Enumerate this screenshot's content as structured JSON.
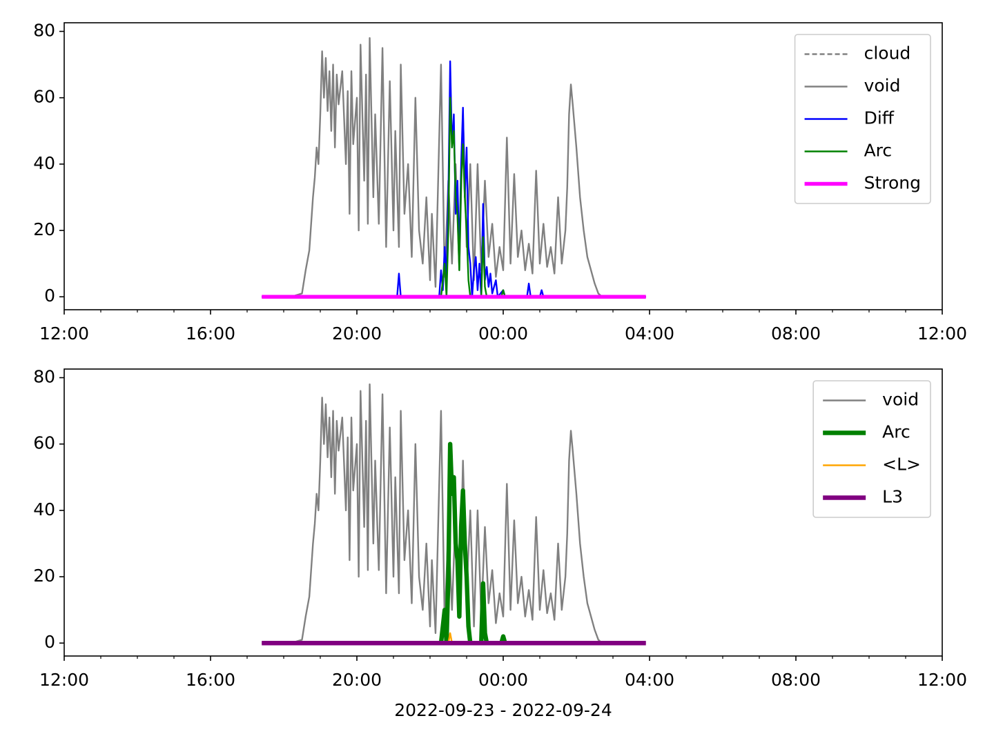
{
  "chart_data": [
    {
      "type": "line",
      "ylim": [
        -3.9,
        82.6
      ],
      "yticks": [
        0,
        20,
        40,
        60,
        80
      ],
      "xlim": [
        0,
        24
      ],
      "xticks": [
        {
          "value": 0,
          "label": "12:00"
        },
        {
          "value": 4,
          "label": "16:00"
        },
        {
          "value": 8,
          "label": "20:00"
        },
        {
          "value": 12,
          "label": "00:00"
        },
        {
          "value": 16,
          "label": "04:00"
        },
        {
          "value": 20,
          "label": "08:00"
        },
        {
          "value": 24,
          "label": "12:00"
        }
      ],
      "xminorticks": [
        1,
        2,
        3,
        5,
        6,
        7,
        9,
        10,
        11,
        13,
        14,
        15,
        17,
        18,
        19,
        21,
        22,
        23
      ],
      "legend": "upper right",
      "series": [
        {
          "name": "cloud",
          "color": "#808080",
          "linestyle": "dashed",
          "linewidth": 1.5,
          "x": [
            5.4,
            15.9
          ],
          "values": [
            0,
            0
          ]
        },
        {
          "name": "void",
          "color": "#808080",
          "linestyle": "solid",
          "linewidth": 1.5,
          "x": [
            5.4,
            6.2,
            6.5,
            6.6,
            6.7,
            6.8,
            6.85,
            6.9,
            6.95,
            7.0,
            7.05,
            7.1,
            7.15,
            7.2,
            7.25,
            7.3,
            7.35,
            7.4,
            7.45,
            7.5,
            7.6,
            7.7,
            7.75,
            7.8,
            7.85,
            7.9,
            8.0,
            8.05,
            8.1,
            8.2,
            8.25,
            8.3,
            8.35,
            8.45,
            8.5,
            8.6,
            8.7,
            8.8,
            8.9,
            9.0,
            9.05,
            9.15,
            9.2,
            9.3,
            9.4,
            9.5,
            9.6,
            9.7,
            9.8,
            9.9,
            10.0,
            10.05,
            10.15,
            10.3,
            10.4,
            10.5,
            10.6,
            10.7,
            10.8,
            10.9,
            11.0,
            11.1,
            11.2,
            11.3,
            11.4,
            11.5,
            11.6,
            11.7,
            11.8,
            11.9,
            12.0,
            12.1,
            12.2,
            12.3,
            12.4,
            12.5,
            12.6,
            12.7,
            12.8,
            12.9,
            13.0,
            13.1,
            13.2,
            13.3,
            13.4,
            13.5,
            13.6,
            13.7,
            13.75,
            13.8,
            13.85,
            13.9,
            14.0,
            14.1,
            14.2,
            14.3,
            14.4,
            14.5,
            14.6,
            14.7,
            15.9
          ],
          "values": [
            0,
            0,
            1,
            8,
            14,
            30,
            36,
            45,
            40,
            55,
            74,
            60,
            72,
            56,
            68,
            50,
            70,
            45,
            67,
            58,
            68,
            40,
            62,
            25,
            68,
            46,
            60,
            20,
            76,
            35,
            67,
            22,
            78,
            30,
            55,
            22,
            75,
            15,
            65,
            20,
            50,
            15,
            70,
            25,
            40,
            12,
            60,
            20,
            10,
            30,
            5,
            25,
            3,
            70,
            6,
            35,
            10,
            40,
            8,
            55,
            15,
            40,
            5,
            40,
            8,
            35,
            12,
            22,
            6,
            15,
            8,
            48,
            10,
            37,
            12,
            20,
            8,
            16,
            7,
            38,
            10,
            22,
            9,
            15,
            7,
            30,
            10,
            20,
            33,
            55,
            64,
            58,
            45,
            30,
            20,
            12,
            8,
            4,
            1,
            0,
            0
          ]
        },
        {
          "name": "Diff",
          "color": "#0000ff",
          "linestyle": "solid",
          "linewidth": 1.5,
          "x": [
            5.4,
            9.1,
            9.15,
            9.2,
            10.25,
            10.3,
            10.35,
            10.4,
            10.45,
            10.5,
            10.55,
            10.6,
            10.65,
            10.7,
            10.75,
            10.8,
            10.85,
            10.9,
            10.95,
            11.0,
            11.05,
            11.1,
            11.15,
            11.2,
            11.25,
            11.3,
            11.35,
            11.4,
            11.45,
            11.5,
            11.55,
            11.6,
            11.65,
            11.7,
            11.8,
            11.85,
            12.0,
            12.05,
            12.65,
            12.7,
            12.75,
            13.0,
            13.05,
            13.1,
            15.9
          ],
          "values": [
            0,
            0,
            7,
            0,
            0,
            8,
            2,
            15,
            5,
            30,
            71,
            45,
            55,
            25,
            35,
            12,
            40,
            57,
            30,
            45,
            15,
            10,
            0,
            8,
            12,
            2,
            10,
            0,
            28,
            5,
            9,
            3,
            7,
            1,
            5,
            0,
            2,
            0,
            0,
            4,
            0,
            0,
            2,
            0,
            0
          ]
        },
        {
          "name": "Arc",
          "color": "#008000",
          "linestyle": "solid",
          "linewidth": 1.5,
          "x": [
            10.3,
            10.35,
            10.4,
            10.45,
            10.5,
            10.55,
            10.6,
            10.65,
            10.7,
            10.75,
            10.8,
            10.85,
            10.9,
            10.95,
            11.0,
            11.05,
            11.1,
            11.4,
            11.45,
            11.5,
            11.55,
            11.95,
            12.0,
            12.05
          ],
          "values": [
            0,
            5,
            10,
            0,
            20,
            60,
            45,
            50,
            30,
            25,
            8,
            35,
            46,
            30,
            20,
            5,
            0,
            0,
            18,
            3,
            0,
            0,
            2,
            0
          ]
        },
        {
          "name": "Strong",
          "color": "#ff00ff",
          "linestyle": "solid",
          "linewidth": 3.5,
          "x": [
            5.4,
            15.9
          ],
          "values": [
            0,
            0
          ]
        }
      ]
    },
    {
      "type": "line",
      "ylim": [
        -3.9,
        82.6
      ],
      "yticks": [
        0,
        20,
        40,
        60,
        80
      ],
      "xlim": [
        0,
        24
      ],
      "xticks": [
        {
          "value": 0,
          "label": "12:00"
        },
        {
          "value": 4,
          "label": "16:00"
        },
        {
          "value": 8,
          "label": "20:00"
        },
        {
          "value": 12,
          "label": "00:00"
        },
        {
          "value": 16,
          "label": "04:00"
        },
        {
          "value": 20,
          "label": "08:00"
        },
        {
          "value": 24,
          "label": "12:00"
        }
      ],
      "xminorticks": [
        1,
        2,
        3,
        5,
        6,
        7,
        9,
        10,
        11,
        13,
        14,
        15,
        17,
        18,
        19,
        21,
        22,
        23
      ],
      "xlabel": "2022-09-23 - 2022-09-24",
      "legend": "upper right",
      "series": [
        {
          "name": "void",
          "color": "#808080",
          "linestyle": "solid",
          "linewidth": 1.5,
          "x": [
            5.4,
            6.2,
            6.5,
            6.6,
            6.7,
            6.8,
            6.85,
            6.9,
            6.95,
            7.0,
            7.05,
            7.1,
            7.15,
            7.2,
            7.25,
            7.3,
            7.35,
            7.4,
            7.45,
            7.5,
            7.6,
            7.7,
            7.75,
            7.8,
            7.85,
            7.9,
            8.0,
            8.05,
            8.1,
            8.2,
            8.25,
            8.3,
            8.35,
            8.45,
            8.5,
            8.6,
            8.7,
            8.8,
            8.9,
            9.0,
            9.05,
            9.15,
            9.2,
            9.3,
            9.4,
            9.5,
            9.6,
            9.7,
            9.8,
            9.9,
            10.0,
            10.05,
            10.15,
            10.3,
            10.4,
            10.5,
            10.6,
            10.7,
            10.8,
            10.9,
            11.0,
            11.1,
            11.2,
            11.3,
            11.4,
            11.5,
            11.6,
            11.7,
            11.8,
            11.9,
            12.0,
            12.1,
            12.2,
            12.3,
            12.4,
            12.5,
            12.6,
            12.7,
            12.8,
            12.9,
            13.0,
            13.1,
            13.2,
            13.3,
            13.4,
            13.5,
            13.6,
            13.7,
            13.75,
            13.8,
            13.85,
            13.9,
            14.0,
            14.1,
            14.2,
            14.3,
            14.4,
            14.5,
            14.6,
            14.7,
            15.9
          ],
          "values": [
            0,
            0,
            1,
            8,
            14,
            30,
            36,
            45,
            40,
            55,
            74,
            60,
            72,
            56,
            68,
            50,
            70,
            45,
            67,
            58,
            68,
            40,
            62,
            25,
            68,
            46,
            60,
            20,
            76,
            35,
            67,
            22,
            78,
            30,
            55,
            22,
            75,
            15,
            65,
            20,
            50,
            15,
            70,
            25,
            40,
            12,
            60,
            20,
            10,
            30,
            5,
            25,
            3,
            70,
            6,
            35,
            10,
            40,
            8,
            55,
            15,
            40,
            5,
            40,
            8,
            35,
            12,
            22,
            6,
            15,
            8,
            48,
            10,
            37,
            12,
            20,
            8,
            16,
            7,
            38,
            10,
            22,
            9,
            15,
            7,
            30,
            10,
            20,
            33,
            55,
            64,
            58,
            45,
            30,
            20,
            12,
            8,
            4,
            1,
            0,
            0
          ]
        },
        {
          "name": "Arc",
          "color": "#008000",
          "linestyle": "solid",
          "linewidth": 4,
          "x": [
            10.3,
            10.35,
            10.4,
            10.45,
            10.5,
            10.55,
            10.6,
            10.65,
            10.7,
            10.75,
            10.8,
            10.85,
            10.9,
            10.95,
            11.0,
            11.05,
            11.1,
            11.4,
            11.45,
            11.5,
            11.55,
            11.95,
            12.0,
            12.05
          ],
          "values": [
            0,
            5,
            10,
            0,
            20,
            60,
            45,
            50,
            30,
            25,
            8,
            35,
            46,
            30,
            20,
            5,
            0,
            0,
            18,
            3,
            0,
            0,
            2,
            0
          ]
        },
        {
          "name": "<L>",
          "color": "#ffa500",
          "linestyle": "solid",
          "linewidth": 1.5,
          "x": [
            10.5,
            10.55,
            10.6
          ],
          "values": [
            0,
            3,
            0
          ]
        },
        {
          "name": "L3",
          "color": "#800080",
          "linestyle": "solid",
          "linewidth": 4,
          "x": [
            5.4,
            15.9
          ],
          "values": [
            0,
            0
          ]
        }
      ]
    }
  ]
}
